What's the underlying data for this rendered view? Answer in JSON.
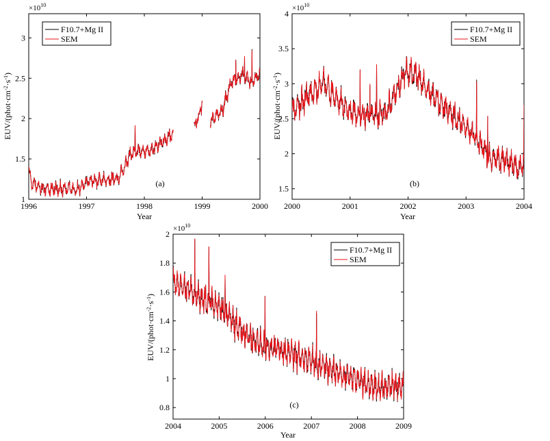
{
  "colors": {
    "model": "#000000",
    "sem": "#e8151b",
    "axis": "#000000",
    "background": "#ffffff"
  },
  "chart_data": [
    {
      "type": "line",
      "panel_label": "(a)",
      "xlabel": "Year",
      "ylabel_parts": {
        "a": "EUV/(phot·cm",
        "sup1": "-2",
        "b": "·s",
        "sup2": "-1",
        "c": ")"
      },
      "y_exponent": {
        "base": "×10",
        "power": "10"
      },
      "xlim": [
        1996,
        2000
      ],
      "ylim": [
        1.0,
        3.3
      ],
      "xticks": [
        "1996",
        "1997",
        "1998",
        "1999",
        "2000"
      ],
      "yticks": [
        "1",
        "1.5",
        "2",
        "2.5",
        "3"
      ],
      "legend": [
        "F10.7+Mg II",
        "SEM"
      ],
      "series": [
        {
          "name": "F10.7+Mg II",
          "anchors": [
            [
              1996.0,
              1.36
            ],
            [
              1996.05,
              1.2
            ],
            [
              1996.3,
              1.12
            ],
            [
              1996.6,
              1.13
            ],
            [
              1996.85,
              1.12
            ],
            [
              1997.0,
              1.22
            ],
            [
              1997.3,
              1.24
            ],
            [
              1997.55,
              1.25
            ],
            [
              1997.65,
              1.4
            ],
            [
              1997.75,
              1.56
            ],
            [
              1997.9,
              1.6
            ],
            [
              1998.1,
              1.6
            ],
            [
              1998.3,
              1.7
            ],
            [
              1998.5,
              1.82
            ],
            [
              1998.52,
              null
            ],
            [
              1998.85,
              null
            ],
            [
              1998.86,
              1.9
            ],
            [
              1998.95,
              2.05
            ],
            [
              1999.0,
              2.2
            ],
            [
              1999.1,
              null
            ],
            [
              1999.14,
              1.97
            ],
            [
              1999.35,
              2.1
            ],
            [
              1999.5,
              2.45
            ],
            [
              1999.7,
              2.55
            ],
            [
              1999.85,
              2.45
            ],
            [
              2000.0,
              2.55
            ]
          ],
          "amplitude": 0.09
        },
        {
          "name": "SEM",
          "anchors": [
            [
              1996.0,
              1.36
            ],
            [
              1996.05,
              1.2
            ],
            [
              1996.3,
              1.12
            ],
            [
              1996.6,
              1.13
            ],
            [
              1996.85,
              1.12
            ],
            [
              1997.0,
              1.22
            ],
            [
              1997.3,
              1.24
            ],
            [
              1997.55,
              1.25
            ],
            [
              1997.65,
              1.4
            ],
            [
              1997.75,
              1.56
            ],
            [
              1997.9,
              1.6
            ],
            [
              1998.1,
              1.6
            ],
            [
              1998.3,
              1.7
            ],
            [
              1998.5,
              1.82
            ],
            [
              1998.52,
              null
            ],
            [
              1998.85,
              null
            ],
            [
              1998.86,
              1.9
            ],
            [
              1998.95,
              2.05
            ],
            [
              1999.0,
              2.2
            ],
            [
              1999.1,
              null
            ],
            [
              1999.14,
              1.97
            ],
            [
              1999.35,
              2.1
            ],
            [
              1999.5,
              2.45
            ],
            [
              1999.7,
              2.55
            ],
            [
              1999.85,
              2.45
            ],
            [
              2000.0,
              2.55
            ]
          ],
          "amplitude": 0.09
        }
      ]
    },
    {
      "type": "line",
      "panel_label": "(b)",
      "xlabel": "Year",
      "ylabel_parts": {
        "a": "EUV/(phot·cm",
        "sup1": "-2",
        "b": "·s",
        "sup2": "-1",
        "c": ")"
      },
      "y_exponent": {
        "base": "×10",
        "power": "10"
      },
      "xlim": [
        2000,
        2004
      ],
      "ylim": [
        1.35,
        4.0
      ],
      "xticks": [
        "2000",
        "2001",
        "2002",
        "2003",
        "2004"
      ],
      "yticks": [
        "1.5",
        "2",
        "2.5",
        "3",
        "3.5",
        "4"
      ],
      "legend": [
        "F10.7+Mg II",
        "SEM"
      ],
      "series": [
        {
          "name": "F10.7+Mg II",
          "anchors": [
            [
              2000.0,
              2.6
            ],
            [
              2000.3,
              2.85
            ],
            [
              2000.55,
              3.0
            ],
            [
              2000.8,
              2.75
            ],
            [
              2001.0,
              2.6
            ],
            [
              2001.3,
              2.55
            ],
            [
              2001.6,
              2.55
            ],
            [
              2001.8,
              2.9
            ],
            [
              2001.95,
              3.15
            ],
            [
              2002.1,
              3.15
            ],
            [
              2002.3,
              2.95
            ],
            [
              2002.6,
              2.7
            ],
            [
              2002.9,
              2.45
            ],
            [
              2003.1,
              2.3
            ],
            [
              2003.4,
              1.95
            ],
            [
              2003.7,
              1.9
            ],
            [
              2003.9,
              1.8
            ],
            [
              2004.0,
              1.85
            ]
          ],
          "amplitude": 0.2
        },
        {
          "name": "SEM",
          "anchors": [
            [
              2000.0,
              2.6
            ],
            [
              2000.3,
              2.85
            ],
            [
              2000.55,
              3.0
            ],
            [
              2000.8,
              2.75
            ],
            [
              2001.0,
              2.6
            ],
            [
              2001.3,
              2.55
            ],
            [
              2001.6,
              2.55
            ],
            [
              2001.8,
              2.9
            ],
            [
              2001.95,
              3.15
            ],
            [
              2002.1,
              3.15
            ],
            [
              2002.3,
              2.95
            ],
            [
              2002.6,
              2.7
            ],
            [
              2002.9,
              2.45
            ],
            [
              2003.1,
              2.3
            ],
            [
              2003.4,
              1.95
            ],
            [
              2003.7,
              1.9
            ],
            [
              2003.9,
              1.8
            ],
            [
              2004.0,
              1.85
            ]
          ],
          "amplitude": 0.2
        }
      ]
    },
    {
      "type": "line",
      "panel_label": "(c)",
      "xlabel": "Year",
      "ylabel_parts": {
        "a": "EUV/(phot·cm",
        "sup1": "-2",
        "b": "·s",
        "sup2": "-1",
        "c": ")"
      },
      "y_exponent": {
        "base": "×10",
        "power": "10"
      },
      "xlim": [
        2004,
        2009
      ],
      "ylim": [
        0.72,
        2.0
      ],
      "xticks": [
        "2004",
        "2005",
        "2006",
        "2007",
        "2008",
        "2009"
      ],
      "yticks": [
        "0.8",
        "1",
        "1.2",
        "1.4",
        "1.6",
        "1.8",
        "2"
      ],
      "legend": [
        "F10.7+Mg II",
        "SEM"
      ],
      "series": [
        {
          "name": "F10.7+Mg II",
          "anchors": [
            [
              2004.0,
              1.68
            ],
            [
              2004.5,
              1.58
            ],
            [
              2005.0,
              1.5
            ],
            [
              2005.5,
              1.32
            ],
            [
              2006.0,
              1.22
            ],
            [
              2006.5,
              1.18
            ],
            [
              2007.0,
              1.12
            ],
            [
              2007.5,
              1.05
            ],
            [
              2008.0,
              0.98
            ],
            [
              2008.5,
              0.94
            ],
            [
              2009.0,
              0.95
            ]
          ],
          "amplitude": 0.1
        },
        {
          "name": "SEM",
          "anchors": [
            [
              2004.0,
              1.68
            ],
            [
              2004.5,
              1.58
            ],
            [
              2005.0,
              1.5
            ],
            [
              2005.5,
              1.32
            ],
            [
              2006.0,
              1.22
            ],
            [
              2006.5,
              1.18
            ],
            [
              2007.0,
              1.12
            ],
            [
              2007.5,
              1.05
            ],
            [
              2008.0,
              0.98
            ],
            [
              2008.5,
              0.94
            ],
            [
              2009.0,
              0.95
            ]
          ],
          "amplitude": 0.1
        }
      ]
    }
  ]
}
